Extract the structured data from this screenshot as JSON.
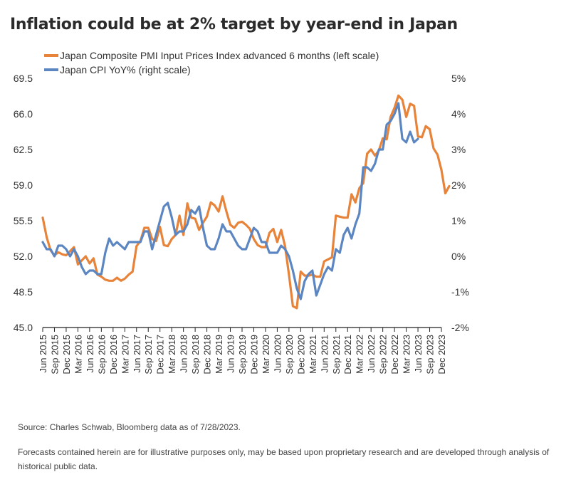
{
  "title": "Inflation could be at 2% target by year-end in Japan",
  "source": "Source: Charles Schwab, Bloomberg data as of 7/28/2023.",
  "disclaimer": "Forecasts contained herein are for illustrative purposes only, may be based upon proprietary research and are developed through analysis of historical public data.",
  "colors": {
    "pmi": "#E8833A",
    "cpi": "#5B86C1",
    "axis": "#222222"
  },
  "chart_data": {
    "type": "line",
    "grid": false,
    "legend_position": "top-left",
    "x_tick_labels": [
      "Jun 2015",
      "Sep 2015",
      "Dec 2015",
      "Mar 2016",
      "Jun 2016",
      "Sep 2016",
      "Dec 2016",
      "Mar 2017",
      "Jun 2017",
      "Sep 2017",
      "Dec 2017",
      "Mar 2018",
      "Jun 2018",
      "Sep 2018",
      "Dec 2018",
      "Mar 2019",
      "Jun 2019",
      "Sep 2019",
      "Dec 2019",
      "Mar 2020",
      "Jun 2020",
      "Sep 2020",
      "Dec 2020",
      "Mar 2021",
      "Jun 2021",
      "Sep 2021",
      "Dec 2021",
      "Mar 2022",
      "Jun 2022",
      "Sep 2022",
      "Dec 2022",
      "Mar 2023",
      "Jun 2023",
      "Sep 2023",
      "Dec 2023"
    ],
    "x_range": [
      "Jun 2015",
      "Dec 2023"
    ],
    "left_axis": {
      "ylim": [
        45.0,
        69.5
      ],
      "ticks": [
        "69.5",
        "66.0",
        "62.5",
        "59.0",
        "55.5",
        "52.0",
        "48.5",
        "45.0"
      ]
    },
    "right_axis": {
      "ylim": [
        -2,
        5
      ],
      "ticks": [
        "5%",
        "4%",
        "3%",
        "2%",
        "1%",
        "0%",
        "-1%",
        "-2%"
      ]
    },
    "series": [
      {
        "name": "Japan Composite PMI Input Prices Index advanced 6 months (left scale)",
        "axis": "left",
        "points": [
          [
            "Jun 2015",
            55.8
          ],
          [
            "Jul 2015",
            53.9
          ],
          [
            "Aug 2015",
            52.6
          ],
          [
            "Sep 2015",
            52.1
          ],
          [
            "Oct 2015",
            52.4
          ],
          [
            "Nov 2015",
            52.2
          ],
          [
            "Dec 2015",
            52.1
          ],
          [
            "Jan 2016",
            52.5
          ],
          [
            "Feb 2016",
            52.9
          ],
          [
            "Mar 2016",
            51.2
          ],
          [
            "Apr 2016",
            51.6
          ],
          [
            "May 2016",
            52.0
          ],
          [
            "Jun 2016",
            51.3
          ],
          [
            "Jul 2016",
            51.8
          ],
          [
            "Aug 2016",
            50.2
          ],
          [
            "Sep 2016",
            50.0
          ],
          [
            "Oct 2016",
            49.7
          ],
          [
            "Nov 2016",
            49.6
          ],
          [
            "Dec 2016",
            49.6
          ],
          [
            "Jan 2017",
            49.9
          ],
          [
            "Feb 2017",
            49.6
          ],
          [
            "Mar 2017",
            49.8
          ],
          [
            "Apr 2017",
            50.2
          ],
          [
            "May 2017",
            50.5
          ],
          [
            "Jun 2017",
            53.0
          ],
          [
            "Jul 2017",
            53.5
          ],
          [
            "Aug 2017",
            54.8
          ],
          [
            "Sep 2017",
            54.8
          ],
          [
            "Oct 2017",
            53.7
          ],
          [
            "Nov 2017",
            53.5
          ],
          [
            "Dec 2017",
            54.9
          ],
          [
            "Jan 2018",
            53.1
          ],
          [
            "Feb 2018",
            53.0
          ],
          [
            "Mar 2018",
            53.7
          ],
          [
            "Apr 2018",
            54.1
          ],
          [
            "May 2018",
            56.0
          ],
          [
            "Jun 2018",
            54.1
          ],
          [
            "Jul 2018",
            57.2
          ],
          [
            "Aug 2018",
            55.8
          ],
          [
            "Sep 2018",
            55.7
          ],
          [
            "Oct 2018",
            54.6
          ],
          [
            "Nov 2018",
            55.3
          ],
          [
            "Dec 2018",
            55.9
          ],
          [
            "Jan 2019",
            57.3
          ],
          [
            "Feb 2019",
            57.0
          ],
          [
            "Mar 2019",
            56.4
          ],
          [
            "Apr 2019",
            57.9
          ],
          [
            "May 2019",
            56.4
          ],
          [
            "Jun 2019",
            55.1
          ],
          [
            "Jul 2019",
            54.8
          ],
          [
            "Aug 2019",
            55.3
          ],
          [
            "Sep 2019",
            55.4
          ],
          [
            "Oct 2019",
            55.1
          ],
          [
            "Nov 2019",
            54.7
          ],
          [
            "Dec 2019",
            53.7
          ],
          [
            "Jan 2020",
            53.1
          ],
          [
            "Feb 2020",
            52.9
          ],
          [
            "Mar 2020",
            52.9
          ],
          [
            "Apr 2020",
            54.3
          ],
          [
            "May 2020",
            54.7
          ],
          [
            "Jun 2020",
            53.4
          ],
          [
            "Jul 2020",
            54.6
          ],
          [
            "Aug 2020",
            53.0
          ],
          [
            "Sep 2020",
            50.2
          ],
          [
            "Oct 2020",
            47.1
          ],
          [
            "Nov 2020",
            46.9
          ],
          [
            "Dec 2020",
            50.5
          ],
          [
            "Jan 2021",
            50.1
          ],
          [
            "Feb 2021",
            50.1
          ],
          [
            "Mar 2021",
            50.2
          ],
          [
            "Apr 2021",
            50.0
          ],
          [
            "May 2021",
            50.0
          ],
          [
            "Jun 2021",
            51.5
          ],
          [
            "Jul 2021",
            51.7
          ],
          [
            "Aug 2021",
            51.9
          ],
          [
            "Sep 2021",
            56.0
          ],
          [
            "Oct 2021",
            55.9
          ],
          [
            "Nov 2021",
            55.8
          ],
          [
            "Dec 2021",
            55.8
          ],
          [
            "Jan 2022",
            58.1
          ],
          [
            "Feb 2022",
            57.3
          ],
          [
            "Mar 2022",
            58.7
          ],
          [
            "Apr 2022",
            59.2
          ],
          [
            "May 2022",
            62.1
          ],
          [
            "Jun 2022",
            62.5
          ],
          [
            "Jul 2022",
            61.9
          ],
          [
            "Aug 2022",
            62.4
          ],
          [
            "Sep 2022",
            63.6
          ],
          [
            "Oct 2022",
            63.5
          ],
          [
            "Nov 2022",
            65.7
          ],
          [
            "Dec 2022",
            66.6
          ],
          [
            "Jan 2023",
            67.8
          ],
          [
            "Feb 2023",
            67.4
          ],
          [
            "Mar 2023",
            65.7
          ],
          [
            "Apr 2023",
            67.0
          ],
          [
            "May 2023",
            66.8
          ],
          [
            "Jun 2023",
            63.8
          ],
          [
            "Jul 2023",
            63.7
          ],
          [
            "Aug 2023",
            64.8
          ],
          [
            "Sep 2023",
            64.5
          ],
          [
            "Oct 2023",
            62.6
          ],
          [
            "Nov 2023",
            62.0
          ],
          [
            "Dec 2023",
            60.5
          ],
          [
            "Jan 2024",
            58.2
          ],
          [
            "Feb 2024",
            58.9
          ]
        ]
      },
      {
        "name": "Japan CPI YoY% (right scale)",
        "axis": "right",
        "points": [
          [
            "Jun 2015",
            0.4
          ],
          [
            "Jul 2015",
            0.2
          ],
          [
            "Aug 2015",
            0.2
          ],
          [
            "Sep 2015",
            0.0
          ],
          [
            "Oct 2015",
            0.3
          ],
          [
            "Nov 2015",
            0.3
          ],
          [
            "Dec 2015",
            0.2
          ],
          [
            "Jan 2016",
            0.0
          ],
          [
            "Feb 2016",
            0.2
          ],
          [
            "Mar 2016",
            0.0
          ],
          [
            "Apr 2016",
            -0.3
          ],
          [
            "May 2016",
            -0.5
          ],
          [
            "Jun 2016",
            -0.4
          ],
          [
            "Jul 2016",
            -0.4
          ],
          [
            "Aug 2016",
            -0.5
          ],
          [
            "Sep 2016",
            -0.5
          ],
          [
            "Oct 2016",
            0.1
          ],
          [
            "Nov 2016",
            0.5
          ],
          [
            "Dec 2016",
            0.3
          ],
          [
            "Jan 2017",
            0.4
          ],
          [
            "Feb 2017",
            0.3
          ],
          [
            "Mar 2017",
            0.2
          ],
          [
            "Apr 2017",
            0.4
          ],
          [
            "May 2017",
            0.4
          ],
          [
            "Jun 2017",
            0.4
          ],
          [
            "Jul 2017",
            0.4
          ],
          [
            "Aug 2017",
            0.7
          ],
          [
            "Sep 2017",
            0.7
          ],
          [
            "Oct 2017",
            0.2
          ],
          [
            "Nov 2017",
            0.6
          ],
          [
            "Dec 2017",
            1.0
          ],
          [
            "Jan 2018",
            1.4
          ],
          [
            "Feb 2018",
            1.5
          ],
          [
            "Mar 2018",
            1.1
          ],
          [
            "Apr 2018",
            0.6
          ],
          [
            "May 2018",
            0.7
          ],
          [
            "Jun 2018",
            0.7
          ],
          [
            "Jul 2018",
            0.9
          ],
          [
            "Aug 2018",
            1.3
          ],
          [
            "Sep 2018",
            1.2
          ],
          [
            "Oct 2018",
            1.4
          ],
          [
            "Nov 2018",
            0.8
          ],
          [
            "Dec 2018",
            0.3
          ],
          [
            "Jan 2019",
            0.2
          ],
          [
            "Feb 2019",
            0.2
          ],
          [
            "Mar 2019",
            0.5
          ],
          [
            "Apr 2019",
            0.9
          ],
          [
            "May 2019",
            0.7
          ],
          [
            "Jun 2019",
            0.7
          ],
          [
            "Jul 2019",
            0.5
          ],
          [
            "Aug 2019",
            0.3
          ],
          [
            "Sep 2019",
            0.2
          ],
          [
            "Oct 2019",
            0.2
          ],
          [
            "Nov 2019",
            0.5
          ],
          [
            "Dec 2019",
            0.8
          ],
          [
            "Jan 2020",
            0.7
          ],
          [
            "Feb 2020",
            0.4
          ],
          [
            "Mar 2020",
            0.4
          ],
          [
            "Apr 2020",
            0.1
          ],
          [
            "May 2020",
            0.1
          ],
          [
            "Jun 2020",
            0.1
          ],
          [
            "Jul 2020",
            0.3
          ],
          [
            "Aug 2020",
            0.2
          ],
          [
            "Sep 2020",
            0.0
          ],
          [
            "Oct 2020",
            -0.4
          ],
          [
            "Nov 2020",
            -0.9
          ],
          [
            "Dec 2020",
            -1.2
          ],
          [
            "Jan 2021",
            -0.7
          ],
          [
            "Feb 2021",
            -0.5
          ],
          [
            "Mar 2021",
            -0.4
          ],
          [
            "Apr 2021",
            -1.1
          ],
          [
            "May 2021",
            -0.8
          ],
          [
            "Jun 2021",
            -0.5
          ],
          [
            "Jul 2021",
            -0.3
          ],
          [
            "Aug 2021",
            -0.4
          ],
          [
            "Sep 2021",
            0.2
          ],
          [
            "Oct 2021",
            0.1
          ],
          [
            "Nov 2021",
            0.6
          ],
          [
            "Dec 2021",
            0.8
          ],
          [
            "Jan 2022",
            0.5
          ],
          [
            "Feb 2022",
            0.9
          ],
          [
            "Mar 2022",
            1.2
          ],
          [
            "Apr 2022",
            2.5
          ],
          [
            "May 2022",
            2.5
          ],
          [
            "Jun 2022",
            2.4
          ],
          [
            "Jul 2022",
            2.6
          ],
          [
            "Aug 2022",
            3.0
          ],
          [
            "Sep 2022",
            3.0
          ],
          [
            "Oct 2022",
            3.7
          ],
          [
            "Nov 2022",
            3.8
          ],
          [
            "Dec 2022",
            4.0
          ],
          [
            "Jan 2023",
            4.3
          ],
          [
            "Feb 2023",
            3.3
          ],
          [
            "Mar 2023",
            3.2
          ],
          [
            "Apr 2023",
            3.5
          ],
          [
            "May 2023",
            3.2
          ],
          [
            "Jun 2023",
            3.3
          ]
        ]
      }
    ]
  }
}
